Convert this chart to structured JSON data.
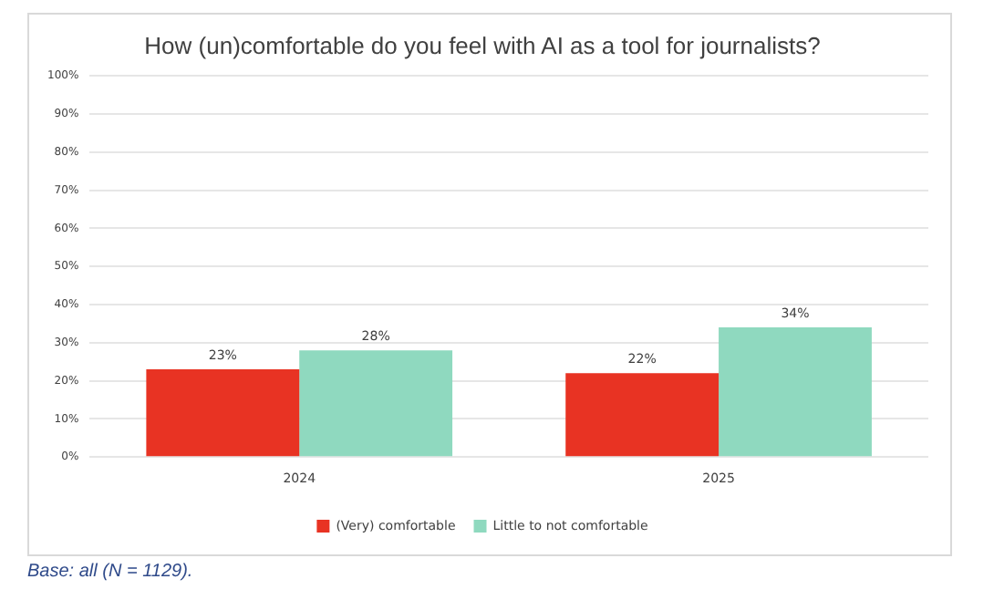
{
  "chart_data": {
    "type": "bar",
    "title": "How (un)comfortable do you feel with AI as a tool for journalists?",
    "categories": [
      "2024",
      "2025"
    ],
    "series": [
      {
        "name": "(Very) comfortable",
        "color": "#e83323",
        "values": [
          23,
          22
        ],
        "value_labels": [
          "23%",
          "22%"
        ]
      },
      {
        "name": "Little to not comfortable",
        "color": "#8fd9bf",
        "values": [
          28,
          34
        ],
        "value_labels": [
          "28%",
          "34%"
        ]
      }
    ],
    "ylim": [
      0,
      100
    ],
    "yticks": [
      {
        "value": 0,
        "label": "0%"
      },
      {
        "value": 10,
        "label": "10%"
      },
      {
        "value": 20,
        "label": "20%"
      },
      {
        "value": 30,
        "label": "30%"
      },
      {
        "value": 40,
        "label": "40%"
      },
      {
        "value": 50,
        "label": "50%"
      },
      {
        "value": 60,
        "label": "60%"
      },
      {
        "value": 70,
        "label": "70%"
      },
      {
        "value": 80,
        "label": "80%"
      },
      {
        "value": 90,
        "label": "90%"
      },
      {
        "value": 100,
        "label": "100%"
      }
    ],
    "grid": "y",
    "legend": "bottom",
    "annotations": [
      "Base: all (N = 1129)."
    ]
  }
}
